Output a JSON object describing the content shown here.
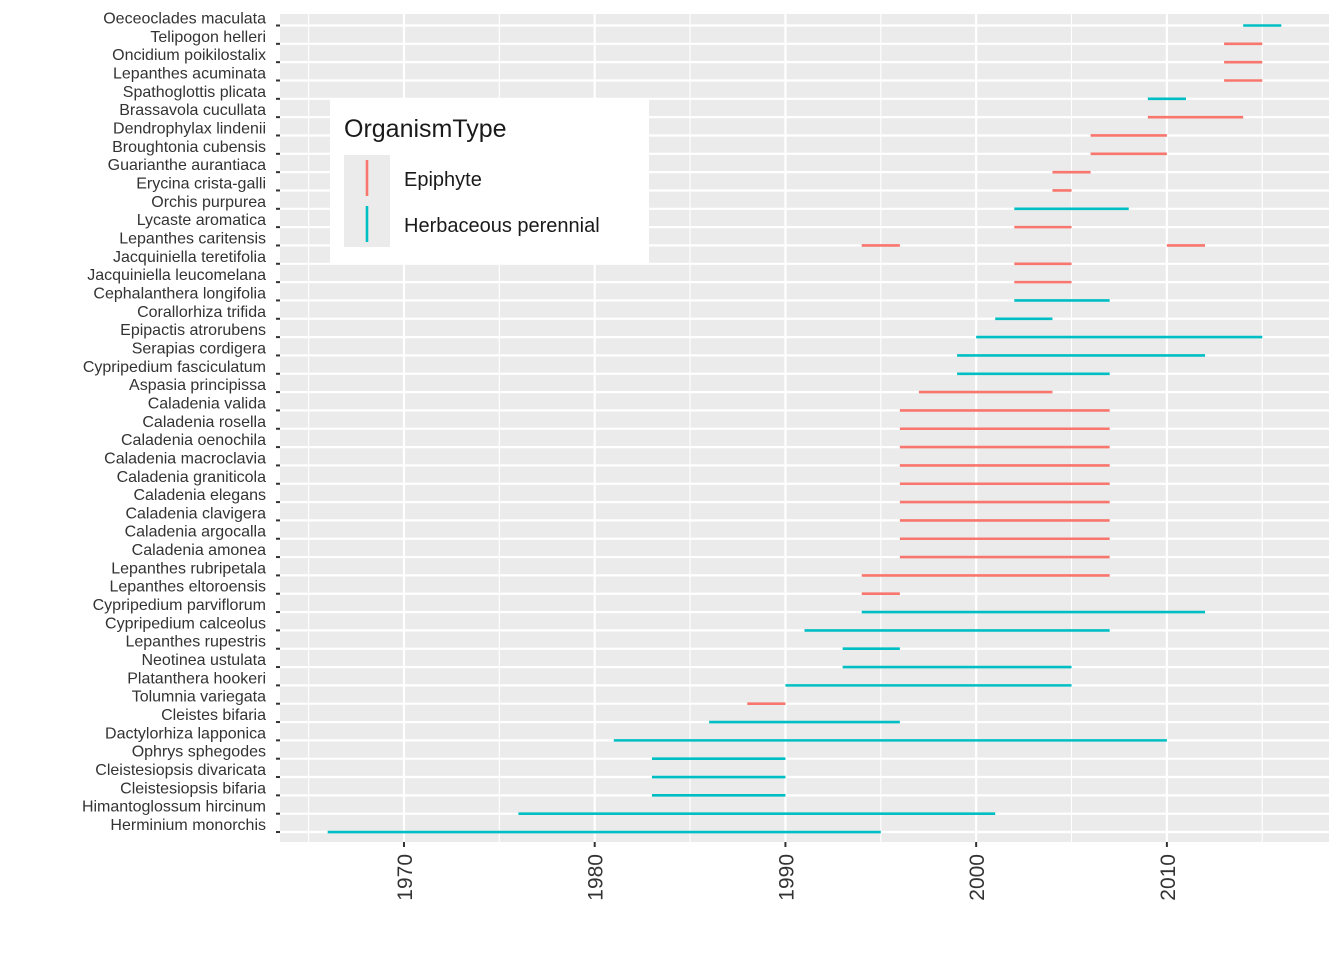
{
  "chart_data": {
    "type": "segment",
    "xlim": [
      1963.5,
      2018.5
    ],
    "x_ticks": [
      1970,
      1980,
      1990,
      2000,
      2010
    ],
    "x_minor_ticks": [
      1965,
      1975,
      1985,
      1995,
      2005,
      2015
    ],
    "grid": true,
    "legend": {
      "title": "OrganismType",
      "placement": "top-left inside",
      "entries": [
        {
          "label": "Epiphyte",
          "color": "#F8766D"
        },
        {
          "label": "Herbaceous perennial",
          "color": "#00BFC4"
        }
      ]
    },
    "categories": [
      "Oeceoclades maculata",
      "Telipogon helleri",
      "Oncidium poikilostalix",
      "Lepanthes acuminata",
      "Spathoglottis plicata",
      "Brassavola cucullata",
      "Dendrophylax lindenii",
      "Broughtonia cubensis",
      "Guarianthe aurantiaca",
      "Erycina crista-galli",
      "Orchis purpurea",
      "Lycaste aromatica",
      "Lepanthes caritensis",
      "Jacquiniella teretifolia",
      "Jacquiniella leucomelana",
      "Cephalanthera longifolia",
      "Corallorhiza trifida",
      "Epipactis atrorubens",
      "Serapias cordigera",
      "Cypripedium fasciculatum",
      "Aspasia principissa",
      "Caladenia valida",
      "Caladenia rosella",
      "Caladenia oenochila",
      "Caladenia macroclavia",
      "Caladenia graniticola",
      "Caladenia elegans",
      "Caladenia clavigera",
      "Caladenia argocalla",
      "Caladenia amonea",
      "Lepanthes rubripetala",
      "Lepanthes eltoroensis",
      "Cypripedium parviflorum",
      "Cypripedium calceolus",
      "Lepanthes rupestris",
      "Neotinea ustulata",
      "Platanthera hookeri",
      "Tolumnia variegata",
      "Cleistes bifaria",
      "Dactylorhiza lapponica",
      "Ophrys sphegodes",
      "Cleistesiopsis divaricata",
      "Cleistesiopsis bifaria",
      "Himantoglossum hircinum",
      "Herminium monorchis"
    ],
    "segments": [
      {
        "species": "Oeceoclades maculata",
        "type": "Herbaceous perennial",
        "start": 2014,
        "end": 2016
      },
      {
        "species": "Telipogon helleri",
        "type": "Epiphyte",
        "start": 2013,
        "end": 2015
      },
      {
        "species": "Oncidium poikilostalix",
        "type": "Epiphyte",
        "start": 2013,
        "end": 2015
      },
      {
        "species": "Lepanthes acuminata",
        "type": "Epiphyte",
        "start": 2013,
        "end": 2015
      },
      {
        "species": "Spathoglottis plicata",
        "type": "Herbaceous perennial",
        "start": 2009,
        "end": 2011
      },
      {
        "species": "Brassavola cucullata",
        "type": "Epiphyte",
        "start": 2009,
        "end": 2014
      },
      {
        "species": "Dendrophylax lindenii",
        "type": "Epiphyte",
        "start": 2006,
        "end": 2010
      },
      {
        "species": "Broughtonia cubensis",
        "type": "Epiphyte",
        "start": 2006,
        "end": 2010
      },
      {
        "species": "Guarianthe aurantiaca",
        "type": "Epiphyte",
        "start": 2004,
        "end": 2006
      },
      {
        "species": "Erycina crista-galli",
        "type": "Epiphyte",
        "start": 2004,
        "end": 2005
      },
      {
        "species": "Orchis purpurea",
        "type": "Herbaceous perennial",
        "start": 2002,
        "end": 2008
      },
      {
        "species": "Lycaste aromatica",
        "type": "Epiphyte",
        "start": 2002,
        "end": 2005
      },
      {
        "species": "Lepanthes caritensis",
        "type": "Epiphyte",
        "start": 1994,
        "end": 1996
      },
      {
        "species": "Lepanthes caritensis",
        "type": "Epiphyte",
        "start": 2010,
        "end": 2012
      },
      {
        "species": "Jacquiniella teretifolia",
        "type": "Epiphyte",
        "start": 2002,
        "end": 2005
      },
      {
        "species": "Jacquiniella leucomelana",
        "type": "Epiphyte",
        "start": 2002,
        "end": 2005
      },
      {
        "species": "Cephalanthera longifolia",
        "type": "Herbaceous perennial",
        "start": 2002,
        "end": 2007
      },
      {
        "species": "Corallorhiza trifida",
        "type": "Herbaceous perennial",
        "start": 2001,
        "end": 2004
      },
      {
        "species": "Epipactis atrorubens",
        "type": "Herbaceous perennial",
        "start": 2000,
        "end": 2015
      },
      {
        "species": "Serapias cordigera",
        "type": "Herbaceous perennial",
        "start": 1999,
        "end": 2012
      },
      {
        "species": "Cypripedium fasciculatum",
        "type": "Herbaceous perennial",
        "start": 1999,
        "end": 2007
      },
      {
        "species": "Aspasia principissa",
        "type": "Epiphyte",
        "start": 1997,
        "end": 2004
      },
      {
        "species": "Caladenia valida",
        "type": "Epiphyte",
        "start": 1996,
        "end": 2007
      },
      {
        "species": "Caladenia rosella",
        "type": "Epiphyte",
        "start": 1996,
        "end": 2007
      },
      {
        "species": "Caladenia oenochila",
        "type": "Epiphyte",
        "start": 1996,
        "end": 2007
      },
      {
        "species": "Caladenia macroclavia",
        "type": "Epiphyte",
        "start": 1996,
        "end": 2007
      },
      {
        "species": "Caladenia graniticola",
        "type": "Epiphyte",
        "start": 1996,
        "end": 2007
      },
      {
        "species": "Caladenia elegans",
        "type": "Epiphyte",
        "start": 1996,
        "end": 2007
      },
      {
        "species": "Caladenia clavigera",
        "type": "Epiphyte",
        "start": 1996,
        "end": 2007
      },
      {
        "species": "Caladenia argocalla",
        "type": "Epiphyte",
        "start": 1996,
        "end": 2007
      },
      {
        "species": "Caladenia amonea",
        "type": "Epiphyte",
        "start": 1996,
        "end": 2007
      },
      {
        "species": "Lepanthes rubripetala",
        "type": "Epiphyte",
        "start": 1994,
        "end": 2007
      },
      {
        "species": "Lepanthes eltoroensis",
        "type": "Epiphyte",
        "start": 1994,
        "end": 1996
      },
      {
        "species": "Cypripedium parviflorum",
        "type": "Herbaceous perennial",
        "start": 1994,
        "end": 2012
      },
      {
        "species": "Cypripedium calceolus",
        "type": "Herbaceous perennial",
        "start": 1991,
        "end": 2007
      },
      {
        "species": "Lepanthes rupestris",
        "type": "Herbaceous perennial",
        "start": 1993,
        "end": 1996
      },
      {
        "species": "Neotinea ustulata",
        "type": "Herbaceous perennial",
        "start": 1993,
        "end": 2005
      },
      {
        "species": "Platanthera hookeri",
        "type": "Herbaceous perennial",
        "start": 1990,
        "end": 2005
      },
      {
        "species": "Tolumnia variegata",
        "type": "Epiphyte",
        "start": 1988,
        "end": 1990
      },
      {
        "species": "Cleistes bifaria",
        "type": "Herbaceous perennial",
        "start": 1986,
        "end": 1996
      },
      {
        "species": "Dactylorhiza lapponica",
        "type": "Herbaceous perennial",
        "start": 1981,
        "end": 2010
      },
      {
        "species": "Ophrys sphegodes",
        "type": "Herbaceous perennial",
        "start": 1983,
        "end": 1990
      },
      {
        "species": "Cleistesiopsis divaricata",
        "type": "Herbaceous perennial",
        "start": 1983,
        "end": 1990
      },
      {
        "species": "Cleistesiopsis bifaria",
        "type": "Herbaceous perennial",
        "start": 1983,
        "end": 1990
      },
      {
        "species": "Himantoglossum hircinum",
        "type": "Herbaceous perennial",
        "start": 1976,
        "end": 2001
      },
      {
        "species": "Herminium monorchis",
        "type": "Herbaceous perennial",
        "start": 1966,
        "end": 1995
      }
    ]
  }
}
